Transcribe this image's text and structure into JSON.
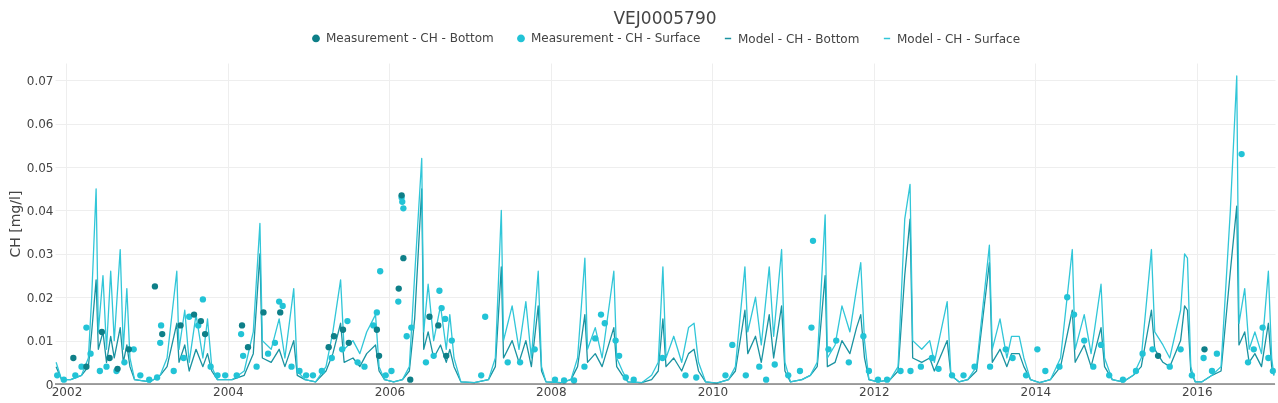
{
  "chart_data": {
    "type": "line",
    "title": "VEJ0005790",
    "ylabel": "CH [mg/l]",
    "xlim": [
      "2001-11-10",
      "2016-12-20"
    ],
    "xticks": [
      "2002",
      "2004",
      "2006",
      "2008",
      "2010",
      "2012",
      "2014",
      "2016"
    ],
    "ylim": [
      0,
      0.074
    ],
    "yticks": [
      0,
      0.01,
      0.02,
      0.03,
      0.04,
      0.05,
      0.06,
      0.07
    ],
    "grid": true,
    "legend": "top",
    "series": [
      {
        "name": "Measurement - CH - Bottom",
        "type": "scatter",
        "color": "#0e7f88",
        "x": [
          "2002-02-01",
          "2002-04-01",
          "2002-06-10",
          "2002-07-15",
          "2002-08-20",
          "2002-10-10",
          "2003-02-05",
          "2003-03-10",
          "2003-06-01",
          "2003-08-01",
          "2003-09-01",
          "2003-09-20",
          "2004-03-05",
          "2004-04-01",
          "2004-06-10",
          "2004-08-25",
          "2005-04-01",
          "2005-04-25",
          "2005-06-05",
          "2005-07-01",
          "2005-11-05",
          "2005-11-15",
          "2006-02-12",
          "2006-02-25",
          "2006-03-05",
          "2006-04-05",
          "2006-07-01",
          "2006-08-10",
          "2006-09-15",
          "2015-07-10",
          "2016-02-05"
        ],
        "values": [
          0.006,
          0.004,
          0.012,
          0.006,
          0.0035,
          0.008,
          0.0225,
          0.0115,
          0.0135,
          0.016,
          0.0145,
          0.0115,
          0.0135,
          0.0085,
          0.0165,
          0.0165,
          0.0085,
          0.011,
          0.0125,
          0.0095,
          0.0125,
          0.0065,
          0.022,
          0.0435,
          0.029,
          0.001,
          0.0155,
          0.0135,
          0.0065,
          0.0065,
          0.008
        ]
      },
      {
        "name": "Measurement - CH - Surface",
        "type": "scatter",
        "color": "#22c3d6",
        "x": [
          "2001-11-20",
          "2001-12-20",
          "2002-02-10",
          "2002-03-10",
          "2002-04-01",
          "2002-04-20",
          "2002-06-01",
          "2002-07-01",
          "2002-08-15",
          "2002-09-20",
          "2002-11-01",
          "2002-12-01",
          "2003-01-10",
          "2003-02-15",
          "2003-03-01",
          "2003-03-05",
          "2003-05-01",
          "2003-06-15",
          "2003-07-10",
          "2003-08-20",
          "2003-09-10",
          "2003-10-15",
          "2003-11-15",
          "2003-12-20",
          "2004-02-10",
          "2004-03-01",
          "2004-03-10",
          "2004-05-10",
          "2004-07-01",
          "2004-08-01",
          "2004-08-20",
          "2004-09-05",
          "2004-10-15",
          "2004-11-20",
          "2004-12-20",
          "2005-01-20",
          "2005-03-01",
          "2005-04-15",
          "2005-06-01",
          "2005-06-25",
          "2005-08-10",
          "2005-09-10",
          "2005-10-20",
          "2005-11-05",
          "2005-11-20",
          "2005-12-15",
          "2006-01-10",
          "2006-02-10",
          "2006-02-25",
          "2006-02-28",
          "2006-03-05",
          "2006-03-20",
          "2006-04-10",
          "2006-06-15",
          "2006-07-20",
          "2006-08-15",
          "2006-08-25",
          "2006-09-10",
          "2006-10-10",
          "2007-02-20",
          "2007-03-10",
          "2007-06-20",
          "2007-08-15",
          "2007-10-20",
          "2008-01-20",
          "2008-03-01",
          "2008-04-15",
          "2008-06-01",
          "2008-07-20",
          "2008-08-15",
          "2008-09-01",
          "2008-10-20",
          "2008-11-05",
          "2008-12-05",
          "2009-01-10",
          "2009-05-20",
          "2009-09-01",
          "2009-10-20",
          "2010-03-01",
          "2010-04-01",
          "2010-06-01",
          "2010-08-01",
          "2010-09-01",
          "2010-10-10",
          "2010-12-10",
          "2011-02-01",
          "2011-03-25",
          "2011-04-01",
          "2011-06-10",
          "2011-07-15",
          "2011-09-10",
          "2011-11-15",
          "2011-12-10",
          "2012-01-20",
          "2012-03-01",
          "2012-05-01",
          "2012-06-15",
          "2012-08-01",
          "2012-09-20",
          "2012-10-20",
          "2012-12-20",
          "2013-02-10",
          "2013-04-01",
          "2013-06-10",
          "2013-08-20",
          "2013-09-20",
          "2013-11-20",
          "2014-01-10",
          "2014-02-15",
          "2014-04-20",
          "2014-05-25",
          "2014-06-25",
          "2014-08-10",
          "2014-09-20",
          "2014-10-25",
          "2014-12-01",
          "2015-02-01",
          "2015-04-01",
          "2015-05-01",
          "2015-06-15",
          "2015-09-01",
          "2015-10-20",
          "2015-12-10",
          "2016-02-01",
          "2016-03-10",
          "2016-04-01",
          "2016-07-22",
          "2016-08-20",
          "2016-09-15",
          "2016-10-25",
          "2016-11-20",
          "2016-12-10"
        ],
        "values": [
          0.002,
          0.001,
          0.002,
          0.004,
          0.013,
          0.007,
          0.003,
          0.004,
          0.003,
          0.005,
          0.008,
          0.002,
          0.001,
          0.0015,
          0.0095,
          0.0135,
          0.003,
          0.006,
          0.0155,
          0.0135,
          0.0195,
          0.004,
          0.002,
          0.002,
          0.002,
          0.0115,
          0.0065,
          0.004,
          0.007,
          0.0095,
          0.019,
          0.018,
          0.004,
          0.003,
          0.002,
          0.002,
          0.003,
          0.006,
          0.008,
          0.0145,
          0.005,
          0.004,
          0.0135,
          0.0165,
          0.026,
          0.002,
          0.003,
          0.019,
          0.043,
          0.042,
          0.0405,
          0.011,
          0.013,
          0.005,
          0.0065,
          0.0215,
          0.0175,
          0.015,
          0.01,
          0.002,
          0.0155,
          0.005,
          0.005,
          0.008,
          0.001,
          0.0008,
          0.0008,
          0.004,
          0.0105,
          0.016,
          0.014,
          0.01,
          0.0065,
          0.0015,
          0.001,
          0.006,
          0.002,
          0.0015,
          0.002,
          0.009,
          0.002,
          0.004,
          0.001,
          0.0045,
          0.002,
          0.003,
          0.013,
          0.033,
          0.008,
          0.01,
          0.005,
          0.011,
          0.003,
          0.001,
          0.001,
          0.003,
          0.003,
          0.004,
          0.006,
          0.0035,
          0.002,
          0.002,
          0.004,
          0.004,
          0.008,
          0.006,
          0.002,
          0.008,
          0.003,
          0.004,
          0.02,
          0.016,
          0.01,
          0.004,
          0.009,
          0.002,
          0.001,
          0.003,
          0.007,
          0.008,
          0.004,
          0.008,
          0.002,
          0.006,
          0.003,
          0.007,
          0.053,
          0.005,
          0.008,
          0.013,
          0.006,
          0.003
        ]
      },
      {
        "name": "Model - CH - Bottom",
        "type": "line",
        "color": "#1a93a1",
        "x": [
          "2001-11-15",
          "2001-12-10",
          "2002-01-20",
          "2002-03-10",
          "2002-04-10",
          "2002-04-25",
          "2002-05-15",
          "2002-05-25",
          "2002-06-15",
          "2002-07-01",
          "2002-07-20",
          "2002-08-05",
          "2002-09-01",
          "2002-09-15",
          "2002-10-01",
          "2002-10-15",
          "2002-11-05",
          "2003-01-15",
          "2003-03-01",
          "2003-04-01",
          "2003-05-15",
          "2003-05-25",
          "2003-06-20",
          "2003-07-10",
          "2003-08-10",
          "2003-09-10",
          "2003-10-01",
          "2003-10-20",
          "2003-11-15",
          "2004-01-20",
          "2004-03-15",
          "2004-04-25",
          "2004-05-25",
          "2004-06-05",
          "2004-07-15",
          "2004-08-20",
          "2004-09-15",
          "2004-10-25",
          "2004-11-10",
          "2004-12-15",
          "2005-02-01",
          "2005-03-20",
          "2005-04-20",
          "2005-05-25",
          "2005-06-10",
          "2005-07-20",
          "2005-08-20",
          "2005-09-20",
          "2005-10-30",
          "2005-11-15",
          "2005-12-10",
          "2006-01-20",
          "2006-03-01",
          "2006-04-01",
          "2006-04-25",
          "2006-05-27",
          "2006-06-05",
          "2006-06-25",
          "2006-07-20",
          "2006-08-20",
          "2006-09-15",
          "2006-10-01",
          "2006-10-20",
          "2006-11-20",
          "2007-01-20",
          "2007-03-25",
          "2007-04-25",
          "2007-05-22",
          "2007-06-01",
          "2007-07-10",
          "2007-08-10",
          "2007-09-10",
          "2007-10-05",
          "2007-11-05",
          "2007-11-20",
          "2007-12-10",
          "2008-02-15",
          "2008-04-01",
          "2008-05-01",
          "2008-06-03",
          "2008-06-15",
          "2008-07-20",
          "2008-08-20",
          "2008-10-12",
          "2008-10-25",
          "2008-11-20",
          "2008-12-15",
          "2009-02-15",
          "2009-04-01",
          "2009-05-01",
          "2009-05-22",
          "2009-06-05",
          "2009-07-10",
          "2009-08-15",
          "2009-09-15",
          "2009-10-10",
          "2009-10-30",
          "2009-12-01",
          "2010-01-20",
          "2010-03-15",
          "2010-04-15",
          "2010-05-28",
          "2010-06-10",
          "2010-07-15",
          "2010-08-10",
          "2010-09-15",
          "2010-10-05",
          "2010-11-10",
          "2010-11-25",
          "2010-12-20",
          "2011-02-10",
          "2011-03-20",
          "2011-04-20",
          "2011-05-26",
          "2011-06-05",
          "2011-07-10",
          "2011-08-10",
          "2011-09-15",
          "2011-10-15",
          "2011-11-03",
          "2011-11-20",
          "2011-12-10",
          "2012-01-20",
          "2012-03-15",
          "2012-04-20",
          "2012-05-20",
          "2012-06-13",
          "2012-06-25",
          "2012-08-05",
          "2012-09-10",
          "2012-10-01",
          "2012-11-28",
          "2012-12-15",
          "2013-01-20",
          "2013-03-01",
          "2013-04-10",
          "2013-06-07",
          "2013-06-20",
          "2013-07-25",
          "2013-08-25",
          "2013-09-15",
          "2013-10-20",
          "2013-11-10",
          "2013-12-10",
          "2014-01-20",
          "2014-03-10",
          "2014-04-25",
          "2014-06-17",
          "2014-06-30",
          "2014-08-10",
          "2014-09-10",
          "2014-10-25",
          "2014-11-10",
          "2014-12-15",
          "2015-02-01",
          "2015-03-20",
          "2015-04-25",
          "2015-06-10",
          "2015-06-25",
          "2015-08-01",
          "2015-09-01",
          "2015-10-20",
          "2015-11-07",
          "2015-11-20",
          "2015-12-05",
          "2015-12-25",
          "2016-01-25",
          "2016-03-10",
          "2016-04-20",
          "2016-06-01",
          "2016-06-30",
          "2016-07-10",
          "2016-08-05",
          "2016-08-25",
          "2016-09-20",
          "2016-10-20",
          "2016-11-20",
          "2016-12-05",
          "2016-12-15"
        ],
        "values": [
          0.004,
          0.001,
          0.001,
          0.002,
          0.004,
          0.012,
          0.024,
          0.008,
          0.012,
          0.005,
          0.011,
          0.006,
          0.013,
          0.005,
          0.009,
          0.004,
          0.001,
          0.0005,
          0.002,
          0.004,
          0.014,
          0.005,
          0.009,
          0.003,
          0.008,
          0.004,
          0.007,
          0.003,
          0.001,
          0.001,
          0.002,
          0.007,
          0.03,
          0.006,
          0.005,
          0.008,
          0.004,
          0.01,
          0.002,
          0.001,
          0.0005,
          0.003,
          0.007,
          0.014,
          0.005,
          0.006,
          0.004,
          0.007,
          0.009,
          0.003,
          0.001,
          0.0005,
          0.001,
          0.003,
          0.015,
          0.045,
          0.008,
          0.012,
          0.006,
          0.009,
          0.005,
          0.008,
          0.004,
          0.0005,
          0.0003,
          0.001,
          0.004,
          0.027,
          0.006,
          0.01,
          0.005,
          0.01,
          0.004,
          0.018,
          0.003,
          0.0005,
          0.0003,
          0.001,
          0.004,
          0.016,
          0.005,
          0.007,
          0.004,
          0.013,
          0.004,
          0.002,
          0.0005,
          0.0003,
          0.001,
          0.003,
          0.015,
          0.004,
          0.006,
          0.003,
          0.007,
          0.008,
          0.003,
          0.0005,
          0.0002,
          0.001,
          0.003,
          0.017,
          0.007,
          0.011,
          0.005,
          0.016,
          0.006,
          0.018,
          0.003,
          0.0005,
          0.001,
          0.002,
          0.004,
          0.025,
          0.004,
          0.005,
          0.01,
          0.007,
          0.013,
          0.016,
          0.006,
          0.001,
          0.0005,
          0.001,
          0.003,
          0.025,
          0.038,
          0.006,
          0.005,
          0.006,
          0.003,
          0.01,
          0.002,
          0.0005,
          0.001,
          0.003,
          0.028,
          0.005,
          0.008,
          0.004,
          0.007,
          0.007,
          0.004,
          0.001,
          0.0003,
          0.001,
          0.004,
          0.017,
          0.005,
          0.009,
          0.004,
          0.013,
          0.004,
          0.001,
          0.0005,
          0.002,
          0.004,
          0.017,
          0.008,
          0.005,
          0.004,
          0.01,
          0.018,
          0.017,
          0.003,
          0.0005,
          0.0005,
          0.002,
          0.003,
          0.026,
          0.041,
          0.009,
          0.012,
          0.005,
          0.007,
          0.004,
          0.014,
          0.004,
          0.002
        ]
      },
      {
        "name": "Model - CH - Surface",
        "type": "line",
        "color": "#31c6d8",
        "x": [
          "2001-11-15",
          "2001-12-10",
          "2002-01-20",
          "2002-03-10",
          "2002-04-10",
          "2002-04-25",
          "2002-05-15",
          "2002-05-25",
          "2002-06-15",
          "2002-07-01",
          "2002-07-20",
          "2002-08-05",
          "2002-09-01",
          "2002-09-15",
          "2002-10-01",
          "2002-10-15",
          "2002-11-05",
          "2003-01-15",
          "2003-03-01",
          "2003-04-01",
          "2003-05-15",
          "2003-05-25",
          "2003-06-20",
          "2003-07-10",
          "2003-08-10",
          "2003-09-10",
          "2003-10-01",
          "2003-10-20",
          "2003-11-15",
          "2004-01-20",
          "2004-03-15",
          "2004-04-25",
          "2004-05-25",
          "2004-06-05",
          "2004-07-15",
          "2004-08-20",
          "2004-09-15",
          "2004-10-25",
          "2004-11-10",
          "2004-12-15",
          "2005-02-01",
          "2005-03-20",
          "2005-04-20",
          "2005-05-25",
          "2005-06-10",
          "2005-07-20",
          "2005-08-20",
          "2005-09-20",
          "2005-10-30",
          "2005-11-15",
          "2005-12-10",
          "2006-01-20",
          "2006-03-01",
          "2006-04-01",
          "2006-04-25",
          "2006-05-27",
          "2006-06-05",
          "2006-06-25",
          "2006-07-20",
          "2006-08-20",
          "2006-09-15",
          "2006-10-01",
          "2006-10-20",
          "2006-11-20",
          "2007-01-20",
          "2007-03-25",
          "2007-04-25",
          "2007-05-22",
          "2007-06-01",
          "2007-07-10",
          "2007-08-10",
          "2007-09-10",
          "2007-10-05",
          "2007-11-05",
          "2007-11-20",
          "2007-12-10",
          "2008-02-15",
          "2008-04-01",
          "2008-05-01",
          "2008-06-03",
          "2008-06-15",
          "2008-07-20",
          "2008-08-20",
          "2008-10-12",
          "2008-10-25",
          "2008-11-20",
          "2008-12-15",
          "2009-02-15",
          "2009-04-01",
          "2009-05-01",
          "2009-05-22",
          "2009-06-05",
          "2009-07-10",
          "2009-08-15",
          "2009-09-15",
          "2009-10-10",
          "2009-10-30",
          "2009-12-01",
          "2010-01-20",
          "2010-03-15",
          "2010-04-15",
          "2010-05-28",
          "2010-06-10",
          "2010-07-15",
          "2010-08-10",
          "2010-09-15",
          "2010-10-05",
          "2010-11-10",
          "2010-11-25",
          "2010-12-20",
          "2011-02-10",
          "2011-03-20",
          "2011-04-20",
          "2011-05-26",
          "2011-06-05",
          "2011-07-10",
          "2011-08-10",
          "2011-09-15",
          "2011-10-15",
          "2011-11-03",
          "2011-11-20",
          "2011-12-10",
          "2012-01-20",
          "2012-03-15",
          "2012-04-20",
          "2012-05-20",
          "2012-06-13",
          "2012-06-25",
          "2012-08-05",
          "2012-09-10",
          "2012-10-01",
          "2012-11-28",
          "2012-12-15",
          "2013-01-20",
          "2013-03-01",
          "2013-04-10",
          "2013-06-07",
          "2013-06-20",
          "2013-07-25",
          "2013-08-25",
          "2013-09-15",
          "2013-10-20",
          "2013-11-10",
          "2013-12-10",
          "2014-01-20",
          "2014-03-10",
          "2014-04-25",
          "2014-06-17",
          "2014-06-30",
          "2014-08-10",
          "2014-09-10",
          "2014-10-25",
          "2014-11-10",
          "2014-12-15",
          "2015-02-01",
          "2015-03-20",
          "2015-04-25",
          "2015-06-10",
          "2015-06-25",
          "2015-08-01",
          "2015-09-01",
          "2015-10-20",
          "2015-11-07",
          "2015-11-20",
          "2015-12-05",
          "2015-12-25",
          "2016-01-25",
          "2016-03-10",
          "2016-04-20",
          "2016-06-01",
          "2016-06-30",
          "2016-07-10",
          "2016-08-05",
          "2016-08-25",
          "2016-09-20",
          "2016-10-20",
          "2016-11-20",
          "2016-12-05",
          "2016-12-15"
        ],
        "values": [
          0.005,
          0.001,
          0.001,
          0.002,
          0.006,
          0.02,
          0.045,
          0.012,
          0.025,
          0.008,
          0.026,
          0.01,
          0.031,
          0.008,
          0.022,
          0.006,
          0.001,
          0.0005,
          0.002,
          0.006,
          0.026,
          0.008,
          0.017,
          0.005,
          0.016,
          0.006,
          0.015,
          0.004,
          0.001,
          0.001,
          0.003,
          0.012,
          0.037,
          0.01,
          0.008,
          0.015,
          0.006,
          0.022,
          0.003,
          0.001,
          0.0005,
          0.004,
          0.012,
          0.024,
          0.008,
          0.01,
          0.007,
          0.012,
          0.016,
          0.004,
          0.001,
          0.0005,
          0.001,
          0.004,
          0.025,
          0.052,
          0.012,
          0.023,
          0.01,
          0.018,
          0.008,
          0.016,
          0.006,
          0.0005,
          0.0003,
          0.001,
          0.006,
          0.04,
          0.01,
          0.018,
          0.008,
          0.019,
          0.006,
          0.026,
          0.004,
          0.0005,
          0.0003,
          0.001,
          0.006,
          0.029,
          0.008,
          0.013,
          0.006,
          0.026,
          0.006,
          0.003,
          0.0005,
          0.0003,
          0.002,
          0.005,
          0.027,
          0.006,
          0.011,
          0.005,
          0.013,
          0.014,
          0.005,
          0.0005,
          0.0002,
          0.001,
          0.004,
          0.027,
          0.012,
          0.02,
          0.009,
          0.027,
          0.011,
          0.031,
          0.005,
          0.0005,
          0.001,
          0.002,
          0.005,
          0.039,
          0.006,
          0.009,
          0.018,
          0.012,
          0.022,
          0.028,
          0.01,
          0.001,
          0.0005,
          0.001,
          0.004,
          0.038,
          0.046,
          0.01,
          0.008,
          0.01,
          0.005,
          0.019,
          0.002,
          0.0005,
          0.001,
          0.004,
          0.032,
          0.008,
          0.015,
          0.006,
          0.011,
          0.011,
          0.006,
          0.001,
          0.0003,
          0.001,
          0.006,
          0.031,
          0.008,
          0.016,
          0.007,
          0.023,
          0.006,
          0.001,
          0.0005,
          0.002,
          0.006,
          0.031,
          0.012,
          0.009,
          0.006,
          0.017,
          0.03,
          0.029,
          0.004,
          0.0005,
          0.0005,
          0.002,
          0.004,
          0.04,
          0.071,
          0.014,
          0.022,
          0.008,
          0.012,
          0.007,
          0.026,
          0.006,
          0.002
        ]
      }
    ]
  }
}
